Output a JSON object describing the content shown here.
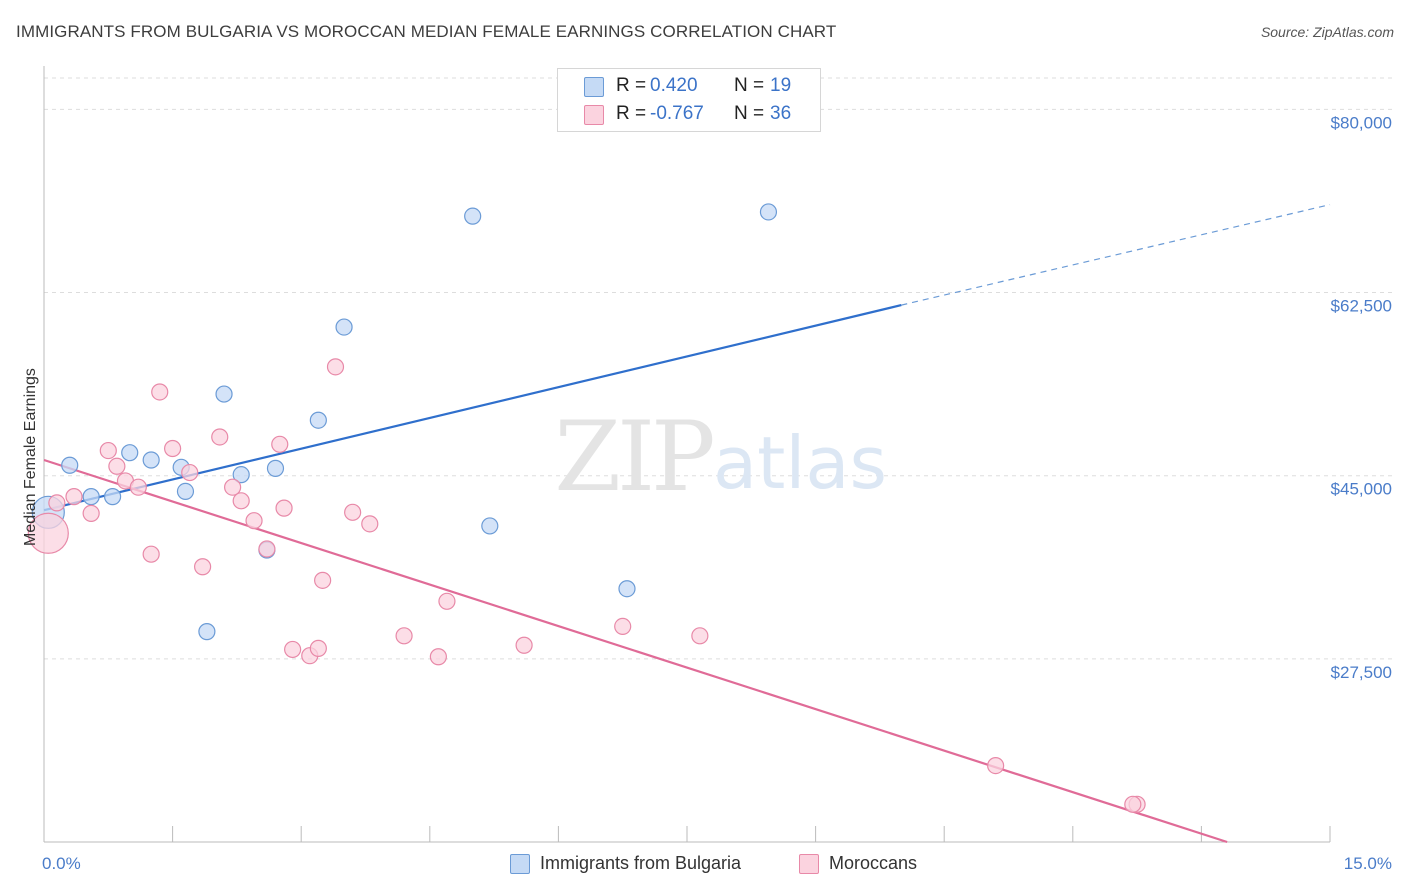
{
  "title": "IMMIGRANTS FROM BULGARIA VS MOROCCAN MEDIAN FEMALE EARNINGS CORRELATION CHART",
  "source": "Source: ZipAtlas.com",
  "watermark": {
    "zip": "ZIP",
    "atlas": "atlas"
  },
  "legend": {
    "rows": [
      {
        "r_key": "R =",
        "r_value": "0.420",
        "n_key": "N =",
        "n_value": "19",
        "color": "#a8c8f0",
        "border": "#6b9bd6"
      },
      {
        "r_key": "R =",
        "r_value": "-0.767",
        "n_key": "N =",
        "n_value": "36",
        "color": "#f7c0d0",
        "border": "#e889a8"
      }
    ]
  },
  "bottom_legend": [
    {
      "label": "Immigrants from Bulgaria",
      "color": "#c5daf5",
      "border": "#6b9bd6"
    },
    {
      "label": "Moroccans",
      "color": "#fbd3df",
      "border": "#e889a8"
    }
  ],
  "chart_data": {
    "type": "scatter",
    "title": "IMMIGRANTS FROM BULGARIA VS MOROCCAN MEDIAN FEMALE EARNINGS CORRELATION CHART",
    "xlabel": "",
    "ylabel": "Median Female Earnings",
    "xlim": [
      0,
      15
    ],
    "ylim": [
      10000,
      83000
    ],
    "x_tick_labels": [
      "0.0%",
      "15.0%"
    ],
    "y_ticks": [
      27500,
      45000,
      62500,
      80000
    ],
    "y_tick_labels": [
      "$27,500",
      "$45,000",
      "$62,500",
      "$80,000"
    ],
    "grid": true,
    "series": [
      {
        "name": "Immigrants from Bulgaria",
        "color": "#6b9bd6",
        "fill": "#c5daf5",
        "points": [
          [
            0.05,
            41500
          ],
          [
            0.3,
            46000
          ],
          [
            0.55,
            43000
          ],
          [
            0.8,
            43000
          ],
          [
            1.0,
            47200
          ],
          [
            1.25,
            46500
          ],
          [
            1.6,
            45800
          ],
          [
            1.65,
            43500
          ],
          [
            1.9,
            30100
          ],
          [
            2.1,
            52800
          ],
          [
            2.3,
            45100
          ],
          [
            2.6,
            37900
          ],
          [
            2.7,
            45700
          ],
          [
            3.2,
            50300
          ],
          [
            3.5,
            59200
          ],
          [
            5.0,
            69800
          ],
          [
            5.2,
            40200
          ],
          [
            6.8,
            34200
          ],
          [
            8.45,
            70200
          ]
        ],
        "trend": {
          "x0": 0.0,
          "y0": 41700,
          "x1": 10.0,
          "y1": 61300,
          "dash_to_x": 15.0,
          "dash_to_y": 70900
        }
      },
      {
        "name": "Moroccans",
        "color": "#e889a8",
        "fill": "#fbd3df",
        "points": [
          [
            0.05,
            39500
          ],
          [
            0.15,
            42400
          ],
          [
            0.35,
            43000
          ],
          [
            0.55,
            41400
          ],
          [
            0.75,
            47400
          ],
          [
            0.85,
            45900
          ],
          [
            0.95,
            44500
          ],
          [
            1.1,
            43900
          ],
          [
            1.25,
            37500
          ],
          [
            1.35,
            53000
          ],
          [
            1.5,
            47600
          ],
          [
            1.7,
            45300
          ],
          [
            1.85,
            36300
          ],
          [
            2.05,
            48700
          ],
          [
            2.2,
            43900
          ],
          [
            2.3,
            42600
          ],
          [
            2.45,
            40700
          ],
          [
            2.6,
            38000
          ],
          [
            2.75,
            48000
          ],
          [
            2.8,
            41900
          ],
          [
            2.9,
            28400
          ],
          [
            3.1,
            27800
          ],
          [
            3.2,
            28500
          ],
          [
            3.25,
            35000
          ],
          [
            3.4,
            55400
          ],
          [
            3.6,
            41500
          ],
          [
            3.8,
            40400
          ],
          [
            4.2,
            29700
          ],
          [
            4.6,
            27700
          ],
          [
            4.7,
            33000
          ],
          [
            5.6,
            28800
          ],
          [
            6.75,
            30600
          ],
          [
            7.65,
            29700
          ],
          [
            11.1,
            17300
          ],
          [
            12.75,
            13600
          ],
          [
            12.7,
            13600
          ]
        ],
        "trend": {
          "x0": 0.0,
          "y0": 46500,
          "x1": 13.8,
          "y1": 10000
        }
      }
    ]
  }
}
